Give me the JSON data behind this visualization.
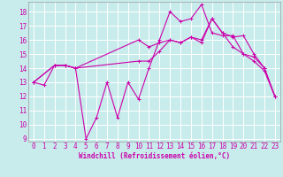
{
  "bg_color": "#c8ecec",
  "grid_color": "#ffffff",
  "line_color": "#cc00aa",
  "xlabel": "Windchill (Refroidissement éolien,°C)",
  "xlim": [
    -0.5,
    23.5
  ],
  "ylim": [
    8.8,
    18.7
  ],
  "yticks": [
    9,
    10,
    11,
    12,
    13,
    14,
    15,
    16,
    17,
    18
  ],
  "xticks": [
    0,
    1,
    2,
    3,
    4,
    5,
    6,
    7,
    8,
    9,
    10,
    11,
    12,
    13,
    14,
    15,
    16,
    17,
    18,
    19,
    20,
    21,
    22,
    23
  ],
  "line1_x": [
    0,
    1,
    2,
    3,
    4,
    5,
    6,
    7,
    8,
    9,
    10,
    11,
    12,
    13,
    14,
    15,
    16,
    17,
    18,
    19,
    20,
    21,
    22,
    23
  ],
  "line1_y": [
    13.0,
    12.8,
    14.2,
    14.2,
    14.0,
    9.0,
    10.5,
    13.0,
    10.5,
    13.0,
    11.8,
    14.0,
    16.0,
    18.0,
    17.3,
    17.5,
    18.5,
    16.5,
    16.3,
    16.3,
    15.0,
    14.5,
    13.8,
    12.0
  ],
  "line2_x": [
    0,
    2,
    3,
    4,
    10,
    11,
    12,
    13,
    14,
    15,
    16,
    17,
    18,
    19,
    20,
    21,
    22,
    23
  ],
  "line2_y": [
    13.0,
    14.2,
    14.2,
    14.0,
    14.5,
    14.5,
    15.2,
    16.0,
    15.8,
    16.2,
    16.0,
    17.5,
    16.5,
    16.2,
    16.3,
    15.0,
    14.0,
    12.0
  ],
  "line3_x": [
    0,
    2,
    3,
    4,
    10,
    11,
    12,
    13,
    14,
    15,
    16,
    17,
    18,
    19,
    20,
    21,
    22,
    23
  ],
  "line3_y": [
    13.0,
    14.2,
    14.2,
    14.0,
    16.0,
    15.5,
    15.8,
    16.0,
    15.8,
    16.2,
    15.8,
    17.5,
    16.5,
    15.5,
    15.0,
    14.8,
    14.0,
    12.0
  ],
  "lw": 0.8,
  "marker_size": 2.5,
  "tick_labelsize": 5.5,
  "xlabel_fontsize": 5.5
}
